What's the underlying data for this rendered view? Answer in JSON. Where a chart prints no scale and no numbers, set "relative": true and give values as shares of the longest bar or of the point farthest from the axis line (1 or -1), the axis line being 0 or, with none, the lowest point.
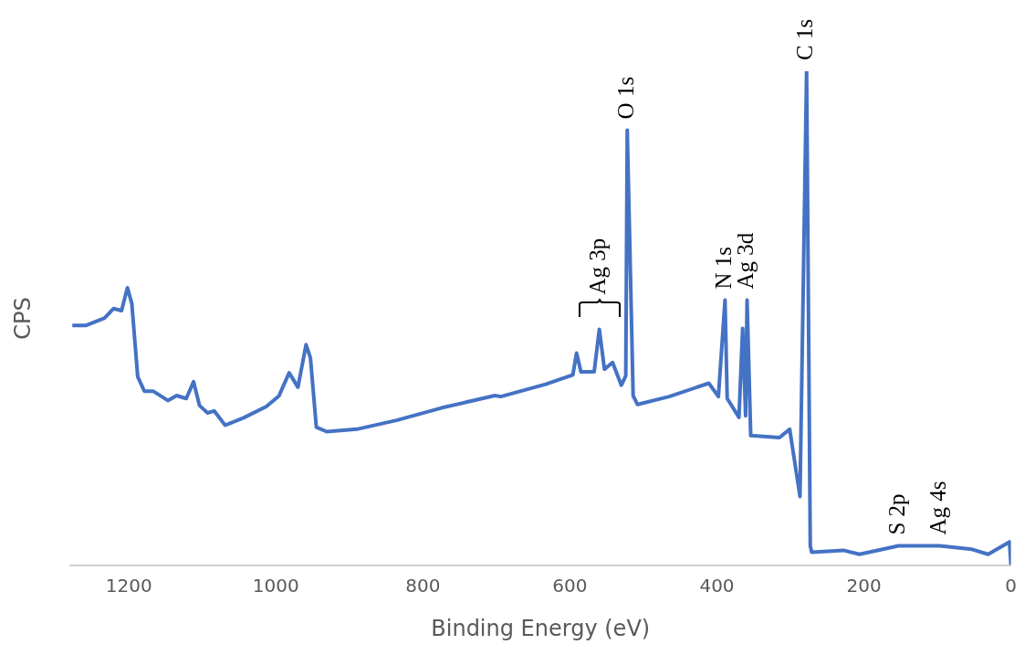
{
  "chart_data": {
    "type": "line",
    "relative": true,
    "xlabel": "Binding Energy (eV)",
    "ylabel": "CPS",
    "xlim": [
      1280,
      0
    ],
    "xticks": [
      1200,
      1000,
      800,
      600,
      400,
      200,
      0
    ],
    "grid": false,
    "legend": false,
    "marker": "none",
    "series": [
      {
        "color": "#4472c4",
        "x": [
          1277,
          1258,
          1233,
          1221,
          1210,
          1202,
          1196,
          1188,
          1179,
          1167,
          1147,
          1135,
          1122,
          1112,
          1104,
          1093,
          1084,
          1069,
          1044,
          1013,
          996,
          982,
          970,
          959,
          953,
          945,
          931,
          890,
          836,
          775,
          702,
          694,
          633,
          596,
          591,
          585,
          567,
          560,
          553,
          542,
          530,
          524,
          522,
          514,
          508,
          465,
          411,
          398,
          389,
          386,
          370,
          365,
          361,
          359,
          354,
          315,
          301,
          287,
          278,
          273,
          271,
          228,
          206,
          153,
          97,
          53,
          31,
          2,
          0
        ],
        "values": [
          0.486,
          0.486,
          0.501,
          0.52,
          0.516,
          0.562,
          0.53,
          0.382,
          0.353,
          0.353,
          0.334,
          0.344,
          0.338,
          0.372,
          0.324,
          0.309,
          0.313,
          0.284,
          0.299,
          0.322,
          0.343,
          0.39,
          0.361,
          0.447,
          0.42,
          0.28,
          0.271,
          0.276,
          0.294,
          0.319,
          0.344,
          0.342,
          0.367,
          0.386,
          0.43,
          0.392,
          0.392,
          0.478,
          0.397,
          0.411,
          0.365,
          0.384,
          0.881,
          0.344,
          0.326,
          0.342,
          0.369,
          0.342,
          0.537,
          0.338,
          0.3,
          0.48,
          0.303,
          0.537,
          0.263,
          0.259,
          0.276,
          0.14,
          1.0,
          0.04,
          0.027,
          0.031,
          0.023,
          0.04,
          0.04,
          0.033,
          0.023,
          0.048,
          0.002
        ]
      }
    ],
    "annotations": [
      {
        "text": "Ag 3p",
        "x": 560,
        "y": 0.478
      },
      {
        "text": "O 1s",
        "x": 522,
        "y": 0.881
      },
      {
        "text": "N 1s",
        "x": 389,
        "y": 0.537
      },
      {
        "text": "Ag 3d",
        "x": 359,
        "y": 0.537
      },
      {
        "text": "C 1s",
        "x": 278,
        "y": 1.0
      },
      {
        "text": "S 2p",
        "x": 153,
        "y": 0.04
      },
      {
        "text": "Ag 4s",
        "x": 97,
        "y": 0.04
      }
    ]
  }
}
